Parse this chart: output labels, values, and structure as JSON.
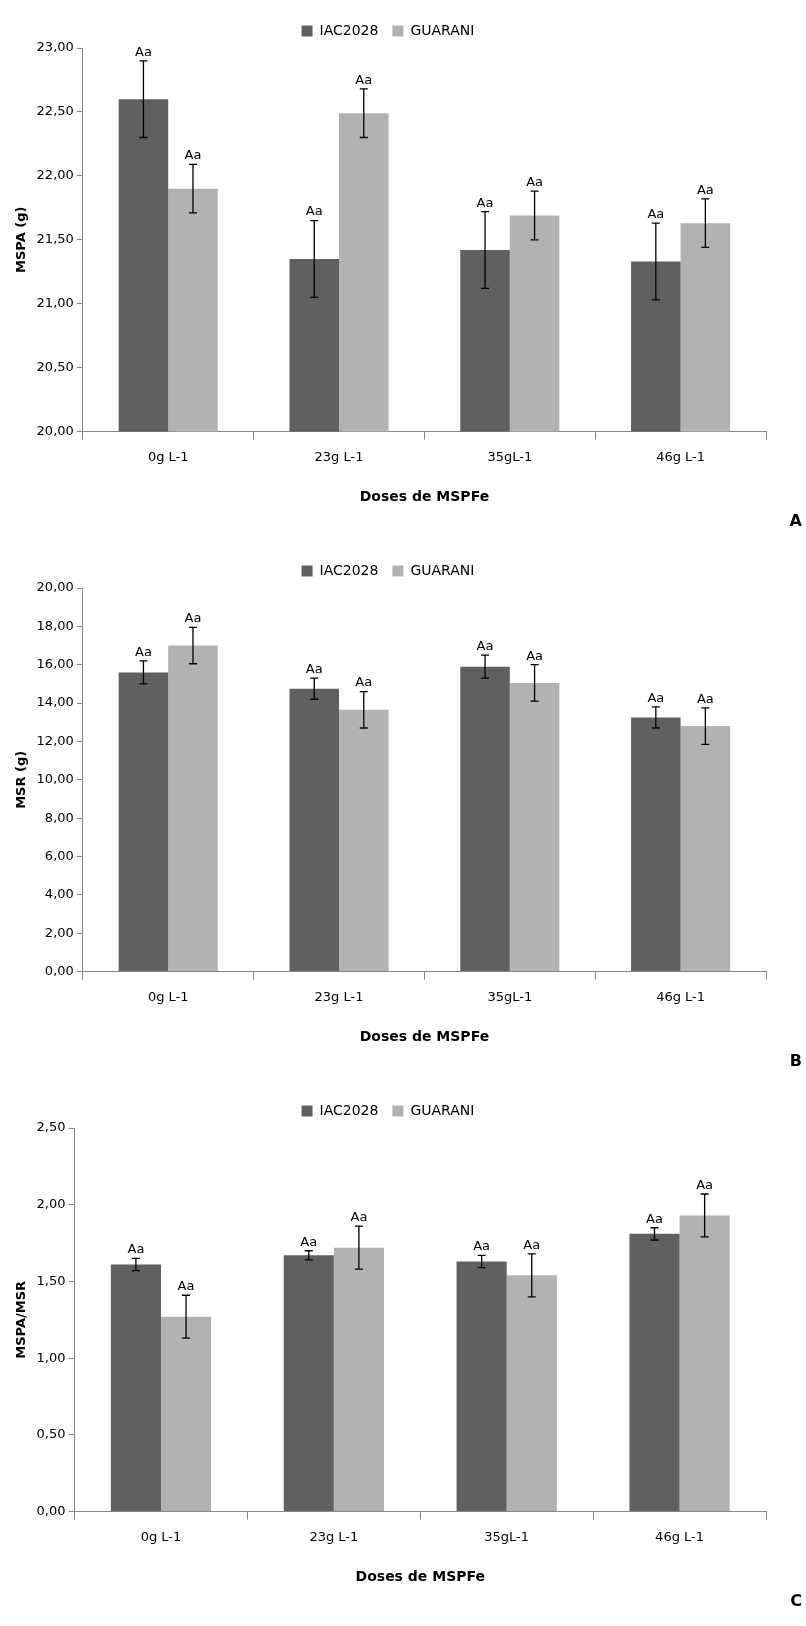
{
  "chart_data": [
    {
      "type": "bar",
      "categories": [
        "0g L-1",
        "23g L-1",
        "35gL-1",
        "46g L-1"
      ],
      "xlabel": "Doses de MSPFe",
      "ylabel": "MSPA (g)",
      "legend": "top",
      "ylim": [
        20,
        23
      ],
      "yticks": [
        {
          "value": 20,
          "label": "20,00"
        },
        {
          "value": 20.5,
          "label": "20,50"
        },
        {
          "value": 21,
          "label": "21,00"
        },
        {
          "value": 21.5,
          "label": "21,50"
        },
        {
          "value": 22,
          "label": "22,00"
        },
        {
          "value": 22.5,
          "label": "22,50"
        },
        {
          "value": 23,
          "label": "23,00"
        }
      ],
      "series": [
        {
          "name": "IAC2028",
          "color": "#606060",
          "values": [
            22.6,
            21.35,
            21.42,
            21.33
          ],
          "errors": [
            0.3,
            0.3,
            0.3,
            0.3
          ],
          "value_labels": [
            "Aa",
            "Aa",
            "Aa",
            "Aa"
          ]
        },
        {
          "name": "GUARANI",
          "color": "#b2b2b2",
          "values": [
            21.9,
            22.49,
            21.69,
            21.63
          ],
          "errors": [
            0.19,
            0.19,
            0.19,
            0.19
          ],
          "value_labels": [
            "Aa",
            "Aa",
            "Aa",
            "Aa"
          ]
        }
      ],
      "annotations": [
        "A"
      ]
    },
    {
      "type": "bar",
      "categories": [
        "0g L-1",
        "23g L-1",
        "35gL-1",
        "46g L-1"
      ],
      "xlabel": "Doses de MSPFe",
      "ylabel": "MSR (g)",
      "legend": "top",
      "ylim": [
        0,
        20
      ],
      "yticks": [
        {
          "value": 0,
          "label": "0,00"
        },
        {
          "value": 2,
          "label": "2,00"
        },
        {
          "value": 4,
          "label": "4,00"
        },
        {
          "value": 6,
          "label": "6,00"
        },
        {
          "value": 8,
          "label": "8,00"
        },
        {
          "value": 10,
          "label": "10,00"
        },
        {
          "value": 12,
          "label": "12,00"
        },
        {
          "value": 14,
          "label": "14,00"
        },
        {
          "value": 16,
          "label": "16,00"
        },
        {
          "value": 18,
          "label": "18,00"
        },
        {
          "value": 20,
          "label": "20,00"
        }
      ],
      "series": [
        {
          "name": "IAC2028",
          "color": "#606060",
          "values": [
            15.6,
            14.75,
            15.9,
            13.25
          ],
          "errors": [
            0.6,
            0.55,
            0.6,
            0.55
          ],
          "value_labels": [
            "Aa",
            "Aa",
            "Aa",
            "Aa"
          ]
        },
        {
          "name": "GUARANI",
          "color": "#b2b2b2",
          "values": [
            17.0,
            13.65,
            15.05,
            12.8
          ],
          "errors": [
            0.95,
            0.95,
            0.95,
            0.95
          ],
          "value_labels": [
            "Aa",
            "Aa",
            "Aa",
            "Aa"
          ]
        }
      ],
      "annotations": [
        "B"
      ]
    },
    {
      "type": "bar",
      "categories": [
        "0g L-1",
        "23g L-1",
        "35gL-1",
        "46g L-1"
      ],
      "xlabel": "Doses de MSPFe",
      "ylabel": "MSPA/MSR",
      "legend": "top",
      "ylim": [
        0,
        2.5
      ],
      "yticks": [
        {
          "value": 0,
          "label": "0,00"
        },
        {
          "value": 0.5,
          "label": "0,50"
        },
        {
          "value": 1,
          "label": "1,00"
        },
        {
          "value": 1.5,
          "label": "1,50"
        },
        {
          "value": 2,
          "label": "2,00"
        },
        {
          "value": 2.5,
          "label": "2,50"
        }
      ],
      "series": [
        {
          "name": "IAC2028",
          "color": "#606060",
          "values": [
            1.61,
            1.67,
            1.63,
            1.81
          ],
          "errors": [
            0.04,
            0.03,
            0.04,
            0.04
          ],
          "value_labels": [
            "Aa",
            "Aa",
            "Aa",
            "Aa"
          ]
        },
        {
          "name": "GUARANI",
          "color": "#b2b2b2",
          "values": [
            1.27,
            1.72,
            1.54,
            1.93
          ],
          "errors": [
            0.14,
            0.14,
            0.14,
            0.14
          ],
          "value_labels": [
            "Aa",
            "Aa",
            "Aa",
            "Aa"
          ]
        }
      ],
      "annotations": [
        "C"
      ]
    }
  ]
}
